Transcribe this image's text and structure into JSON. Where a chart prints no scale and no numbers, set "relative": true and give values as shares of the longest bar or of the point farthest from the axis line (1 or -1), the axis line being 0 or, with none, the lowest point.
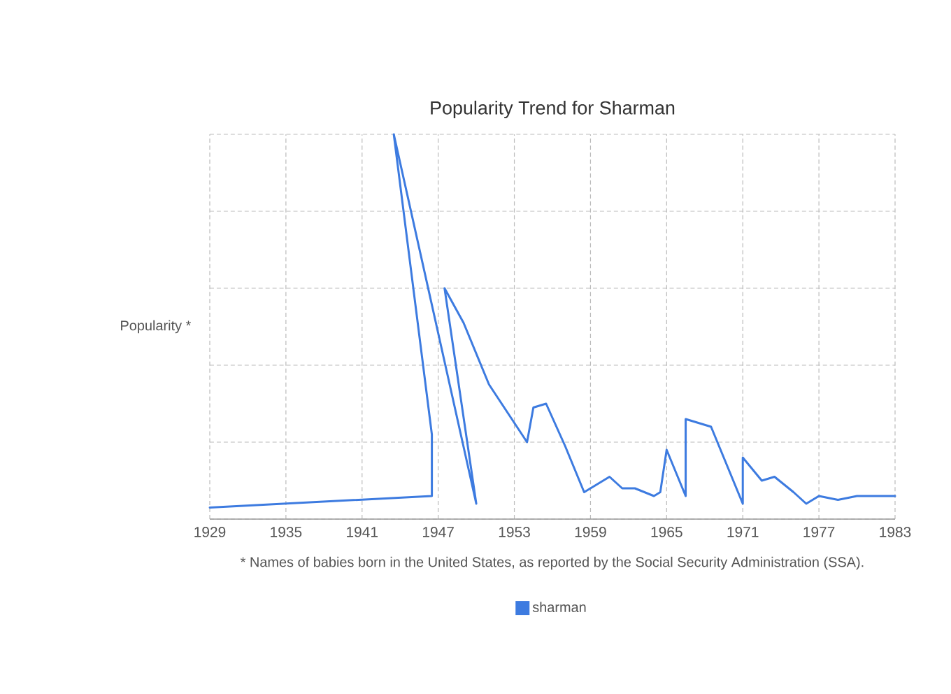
{
  "chart_data": {
    "type": "line",
    "title": "Popularity Trend for Sharman",
    "ylabel": "Popularity *",
    "annotations": [
      "* Names of babies born in the United States, as reported by the Social Security Administration (SSA)."
    ],
    "relative": true,
    "xlim": [
      1929,
      1983
    ],
    "xticks": [
      1929,
      1935,
      1941,
      1947,
      1953,
      1959,
      1965,
      1971,
      1977,
      1983
    ],
    "grid": true,
    "legend": "bottom",
    "marker": "none",
    "line_style": "solid",
    "series": [
      {
        "name": "sharman",
        "color": "#3d7be0",
        "x": [
          1929,
          1946.5,
          1946.5,
          1943.5,
          1950,
          1947.5,
          1949,
          1951,
          1954,
          1954.5,
          1955.5,
          1957,
          1958.5,
          1960.5,
          1961.5,
          1962.5,
          1964,
          1964.5,
          1965,
          1966.5,
          1966.5,
          1968.5,
          1971,
          1971,
          1972.5,
          1973.5,
          1975,
          1976,
          1977,
          1978.5,
          1980,
          1983
        ],
        "values": [
          0.03,
          0.06,
          0.22,
          1,
          0.04,
          0.6,
          0.51,
          0.35,
          0.2,
          0.29,
          0.3,
          0.19,
          0.07,
          0.11,
          0.08,
          0.08,
          0.06,
          0.07,
          0.18,
          0.06,
          0.26,
          0.24,
          0.04,
          0.16,
          0.1,
          0.11,
          0.07,
          0.04,
          0.06,
          0.05,
          0.06,
          0.06
        ]
      }
    ]
  }
}
